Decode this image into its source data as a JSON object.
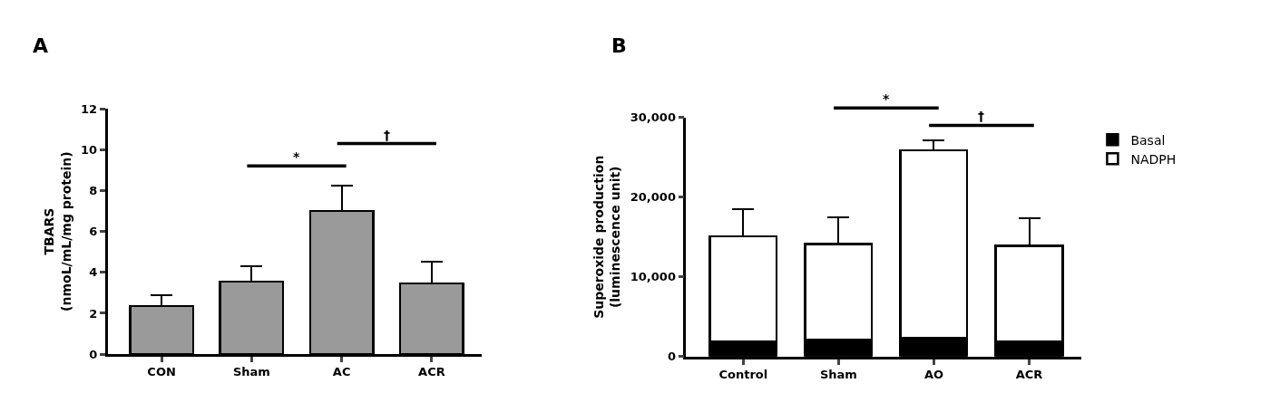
{
  "chart_data": [
    {
      "type": "bar",
      "title": "A",
      "ylabel": "TBARS\n(nmoL/mL/mg protein)",
      "categories": [
        "CON",
        "Sham",
        "AC",
        "ACR"
      ],
      "series": [
        {
          "color": "#9a9a9a",
          "values": [
            2.35,
            3.55,
            7.0,
            3.45
          ],
          "errors": [
            [
              2.35,
              2.9
            ],
            [
              3.55,
              4.3
            ],
            [
              7.0,
              8.25
            ],
            [
              3.45,
              4.5
            ]
          ]
        }
      ],
      "ylim": [
        0,
        12
      ],
      "yticks": [
        0,
        2,
        4,
        6,
        8,
        10,
        12
      ],
      "legend": false,
      "annotations": [
        "*",
        "†"
      ]
    },
    {
      "type": "bar",
      "title": "B",
      "ylabel": "Superoxide production\n(luminescence unit)",
      "categories": [
        "Control",
        "Sham",
        "AO",
        "ACR"
      ],
      "stacked": true,
      "series": [
        {
          "name": "Basal",
          "color": "#000000",
          "values": [
            1900,
            2100,
            2300,
            1900
          ]
        },
        {
          "name": "NADPH",
          "color": "#ffffff",
          "values": [
            13200,
            12000,
            23600,
            12000
          ],
          "errors": [
            [
              15100,
              18500
            ],
            [
              14100,
              17500
            ],
            [
              25900,
              27150
            ],
            [
              13850,
              17400
            ]
          ]
        }
      ],
      "ylim": [
        0,
        30000
      ],
      "yticks": [
        {
          "value": 0,
          "label": "0"
        },
        {
          "value": 10000,
          "label": "10,000"
        },
        {
          "value": 20000,
          "label": "20,000"
        },
        {
          "value": 30000,
          "label": "30,000"
        }
      ],
      "legend": "top right",
      "annotations": [
        "*",
        "†"
      ]
    }
  ]
}
